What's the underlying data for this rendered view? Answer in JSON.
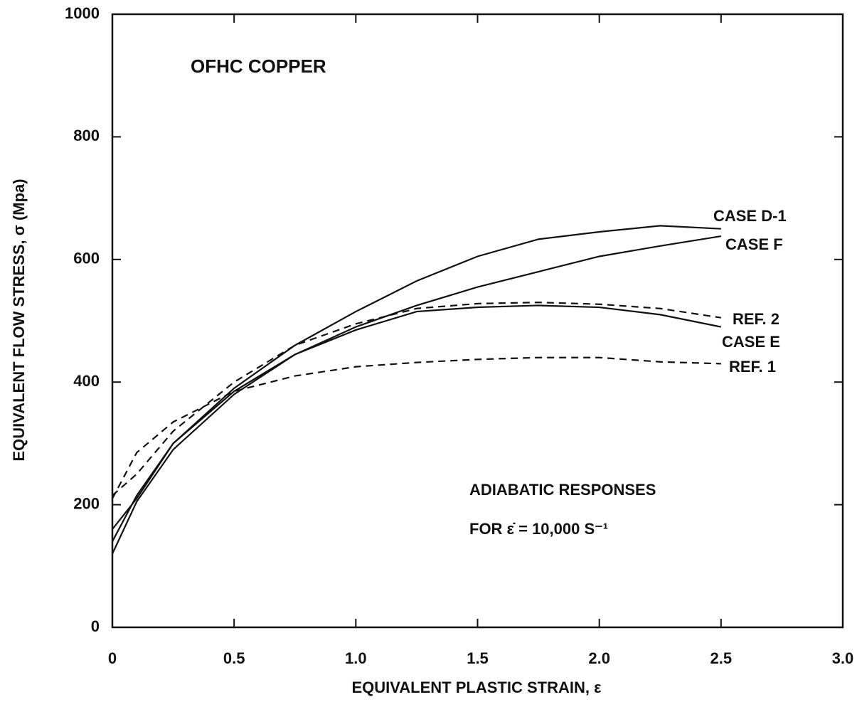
{
  "chart_data": {
    "type": "line",
    "annotations": [
      "OFHC COPPER",
      "ADIABATIC RESPONSES",
      "FOR ε̇ = 10,000 S⁻¹"
    ],
    "xlabel": "EQUIVALENT PLASTIC STRAIN, ε",
    "ylabel": "EQUIVALENT FLOW STRESS, σ (Mpa)",
    "x": [
      0,
      0.1,
      0.25,
      0.5,
      0.75,
      1.0,
      1.25,
      1.5,
      1.75,
      2.0,
      2.25,
      2.5
    ],
    "series": [
      {
        "name": "CASE D-1",
        "color": "#111111",
        "style": "solid",
        "values": [
          140,
          215,
          300,
          390,
          460,
          515,
          565,
          605,
          633,
          645,
          655,
          650
        ]
      },
      {
        "name": "CASE F",
        "color": "#111111",
        "style": "solid",
        "values": [
          120,
          205,
          290,
          380,
          445,
          490,
          525,
          555,
          580,
          605,
          622,
          638
        ]
      },
      {
        "name": "REF. 2",
        "color": "#111111",
        "style": "dashed",
        "values": [
          215,
          250,
          320,
          400,
          460,
          495,
          520,
          528,
          530,
          527,
          520,
          505
        ]
      },
      {
        "name": "CASE E",
        "color": "#111111",
        "style": "solid",
        "values": [
          160,
          210,
          300,
          385,
          445,
          485,
          515,
          522,
          525,
          522,
          510,
          490
        ]
      },
      {
        "name": "REF. 1",
        "color": "#111111",
        "style": "dashed",
        "values": [
          210,
          285,
          335,
          385,
          410,
          425,
          432,
          437,
          440,
          440,
          433,
          430
        ]
      }
    ],
    "xlim": [
      0,
      3
    ],
    "ylim": [
      0,
      1000
    ],
    "xticks": [
      0,
      0.5,
      {
        "value": 1,
        "label": "1.0"
      },
      1.5,
      {
        "value": 2,
        "label": "2.0"
      },
      2.5,
      {
        "value": 3,
        "label": "3.0"
      }
    ],
    "yticks": [
      0,
      200,
      400,
      600,
      800,
      1000
    ]
  }
}
